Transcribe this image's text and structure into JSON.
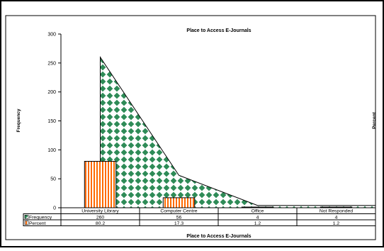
{
  "chart_data": {
    "type": "bar+area",
    "title": "Place to Access E-Journals",
    "xlabel": "Place to Access E-Journals",
    "ylabel": "Frequency",
    "y2label": "Percent",
    "ylim": [
      0,
      300
    ],
    "yticks": [
      0,
      50,
      100,
      150,
      200,
      250,
      300
    ],
    "categories": [
      "University Library",
      "Computer Centre",
      "Office",
      "Not Responded"
    ],
    "series": [
      {
        "name": "Frequency",
        "kind": "area",
        "values": [
          260,
          56,
          4,
          4
        ],
        "labels": [
          "260",
          "56",
          "4",
          "4"
        ],
        "color": "#2e8b57"
      },
      {
        "name": "Percent",
        "kind": "bar",
        "values": [
          80.2,
          17.3,
          1.2,
          1.2
        ],
        "labels": [
          "80.2",
          "17.3",
          "1.2",
          "1.2"
        ],
        "color": "#ff6a00"
      }
    ],
    "grid": false,
    "legend": "data-table"
  }
}
